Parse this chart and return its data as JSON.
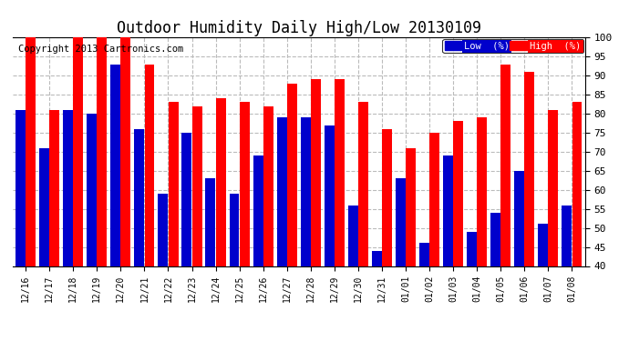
{
  "title": "Outdoor Humidity Daily High/Low 20130109",
  "copyright": "Copyright 2013 Cartronics.com",
  "categories": [
    "12/16",
    "12/17",
    "12/18",
    "12/19",
    "12/20",
    "12/21",
    "12/22",
    "12/23",
    "12/24",
    "12/25",
    "12/26",
    "12/27",
    "12/28",
    "12/29",
    "12/30",
    "12/31",
    "01/01",
    "01/02",
    "01/03",
    "01/04",
    "01/05",
    "01/06",
    "01/07",
    "01/08"
  ],
  "high_values": [
    100,
    81,
    100,
    100,
    100,
    93,
    83,
    82,
    84,
    83,
    82,
    88,
    89,
    89,
    83,
    76,
    71,
    75,
    78,
    79,
    93,
    91,
    81,
    83
  ],
  "low_values": [
    81,
    71,
    81,
    80,
    93,
    76,
    59,
    75,
    63,
    59,
    69,
    79,
    79,
    77,
    56,
    44,
    63,
    46,
    69,
    49,
    54,
    65,
    51,
    56
  ],
  "bar_color_high": "#ff0000",
  "bar_color_low": "#0000cc",
  "ylim": [
    40,
    100
  ],
  "yticks": [
    40,
    45,
    50,
    55,
    60,
    65,
    70,
    75,
    80,
    85,
    90,
    95,
    100
  ],
  "grid_color": "#bbbbbb",
  "background_color": "#ffffff",
  "legend_low_label": "Low  (%)",
  "legend_high_label": "High  (%)",
  "title_fontsize": 12,
  "copyright_fontsize": 7.5
}
